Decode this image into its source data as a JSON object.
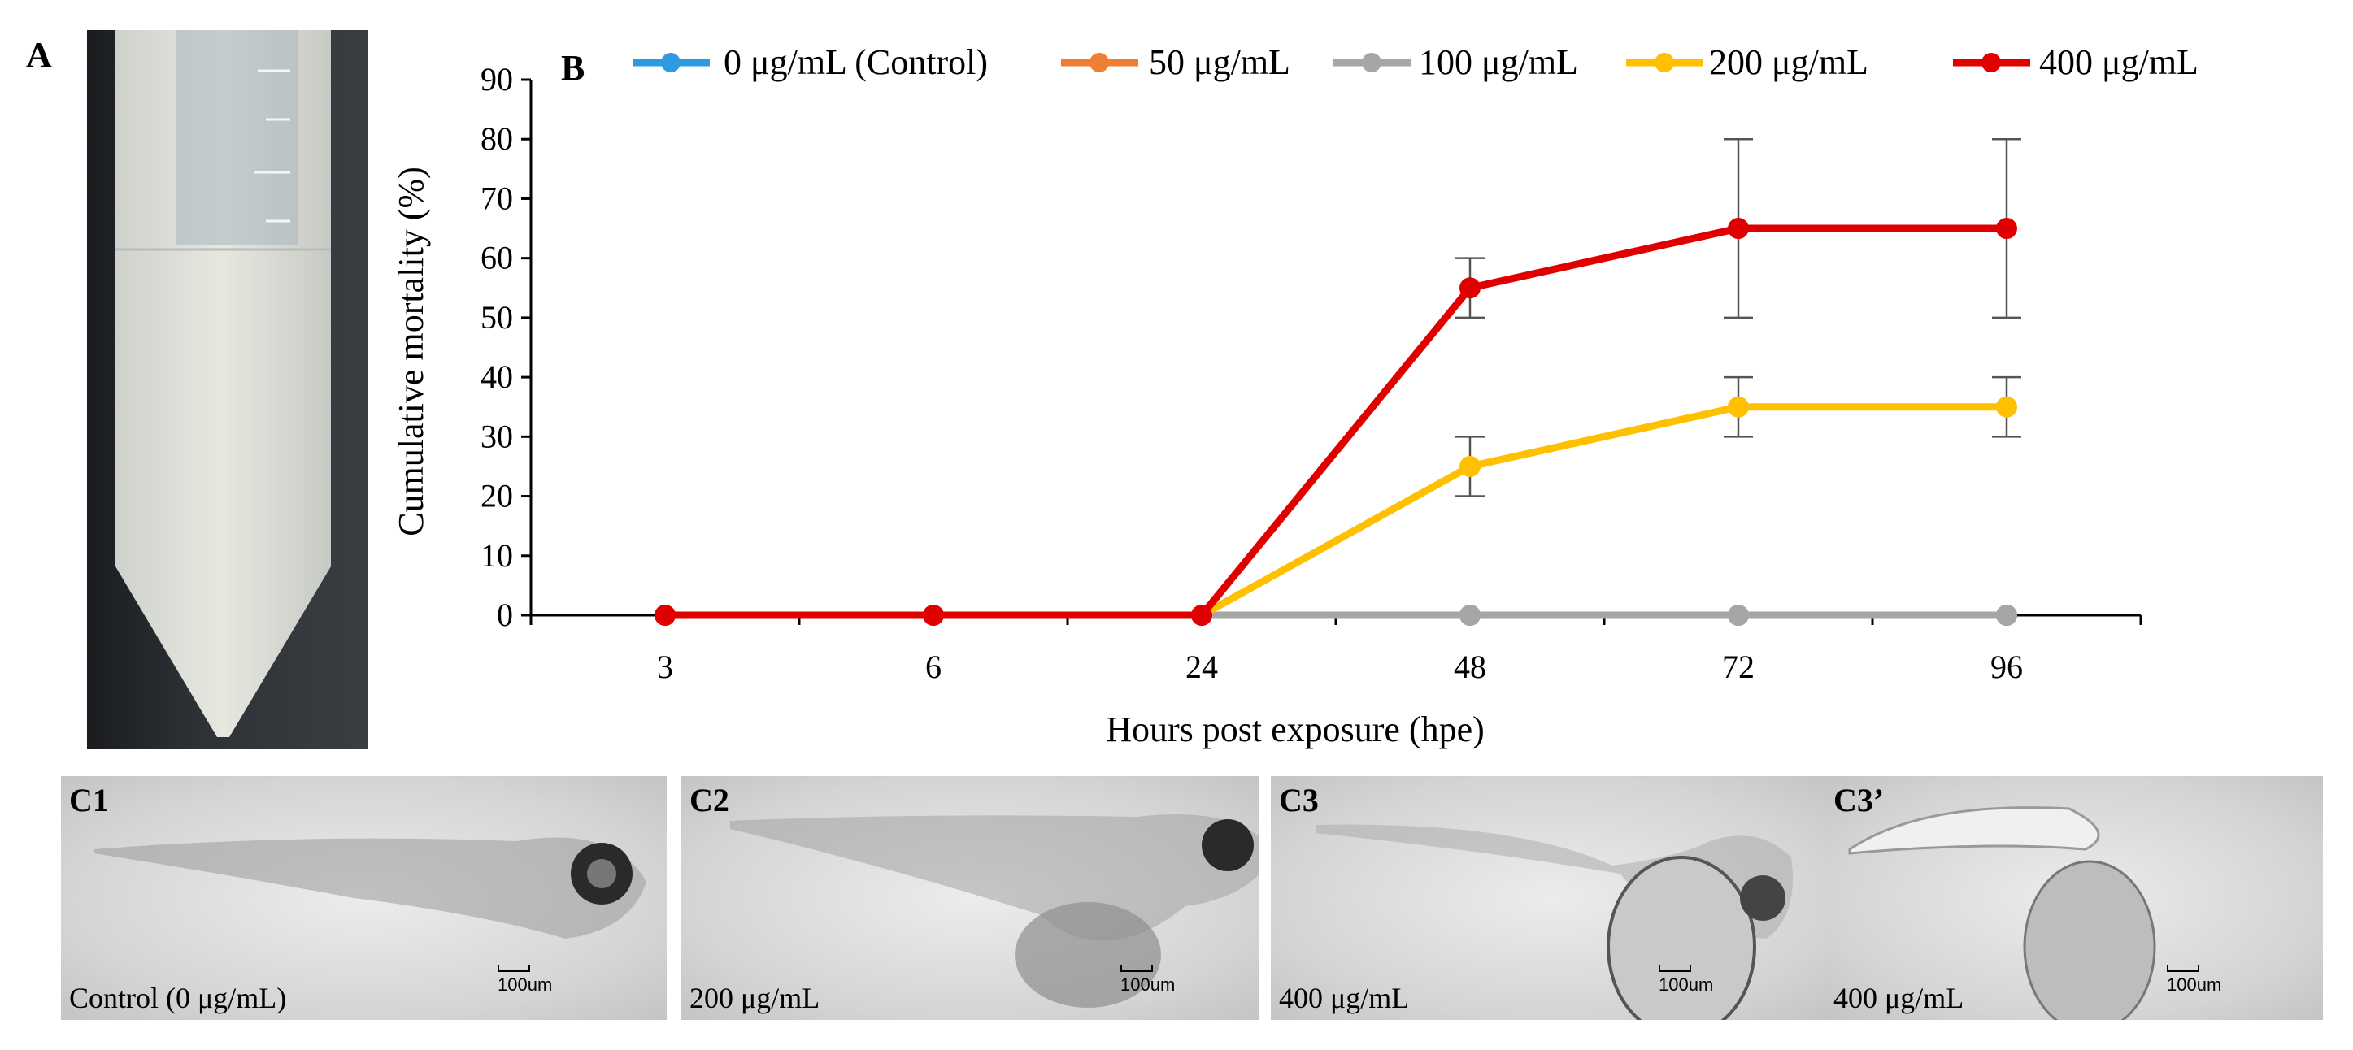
{
  "panels": {
    "a_label": "A",
    "b_label": "B"
  },
  "chart_data": {
    "type": "line",
    "title": "",
    "xlabel": "Hours post exposure (hpe)",
    "ylabel": "Cumulative mortality (%)",
    "categories": [
      "3",
      "6",
      "24",
      "48",
      "72",
      "96"
    ],
    "ylim": [
      0,
      90
    ],
    "yticks": [
      0,
      10,
      20,
      30,
      40,
      50,
      60,
      70,
      80,
      90
    ],
    "legend_position": "top",
    "series": [
      {
        "name": "0 μg/mL (Control)",
        "color": "#2e9be0",
        "values": [
          0,
          0,
          0,
          0,
          0,
          0
        ],
        "errors": [
          0,
          0,
          0,
          0,
          0,
          0
        ]
      },
      {
        "name": "50 μg/mL",
        "color": "#ef7f33",
        "values": [
          0,
          0,
          0,
          0,
          0,
          0
        ],
        "errors": [
          0,
          0,
          0,
          0,
          0,
          0
        ]
      },
      {
        "name": "100 μg/mL",
        "color": "#a6a6a6",
        "values": [
          0,
          0,
          0,
          0,
          0,
          0
        ],
        "errors": [
          0,
          0,
          0,
          0,
          0,
          0
        ]
      },
      {
        "name": "200 μg/mL",
        "color": "#ffc000",
        "values": [
          0,
          0,
          0,
          25,
          35,
          35
        ],
        "errors": [
          0,
          0,
          0,
          5,
          5,
          5
        ]
      },
      {
        "name": "400 μg/mL",
        "color": "#e00000",
        "values": [
          0,
          0,
          0,
          55,
          65,
          65
        ],
        "errors": [
          0,
          0,
          0,
          5,
          15,
          15
        ]
      }
    ]
  },
  "photos": [
    {
      "label": "C1",
      "concentration": "Control (0 μg/mL)",
      "scale": "100um"
    },
    {
      "label": "C2",
      "concentration": "200 μg/mL",
      "scale": "100um"
    },
    {
      "label": "C3",
      "concentration": "400 μg/mL",
      "scale": "100um"
    },
    {
      "label": "C3’",
      "concentration": "400 μg/mL",
      "scale": "100um"
    }
  ]
}
